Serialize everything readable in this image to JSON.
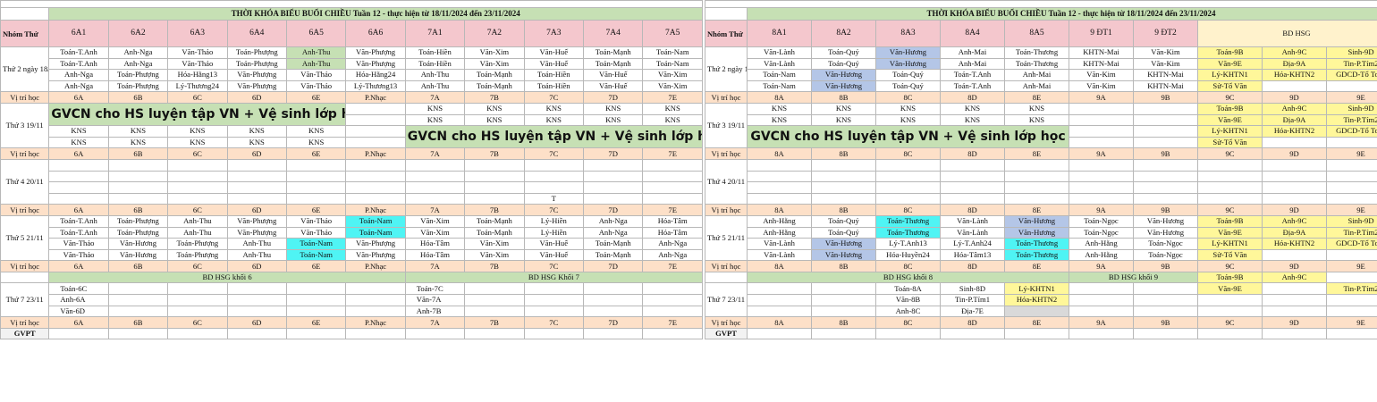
{
  "left": {
    "title": "THỜI KHÓA BIỂU BUỔI CHIỀU Tuần 12 - thực hiện từ 18/11/2024 đến 23/11/2024",
    "header_label": "Nhóm Thứ",
    "classes": [
      "6A1",
      "6A2",
      "6A3",
      "6A4",
      "6A5",
      "6A6",
      "7A1",
      "7A2",
      "7A3",
      "7A4",
      "7A5"
    ],
    "rooms": [
      "6A",
      "6B",
      "6C",
      "6D",
      "6E",
      "P.Nhạc",
      "7A",
      "7B",
      "7C",
      "7D",
      "7E"
    ],
    "room_label": "Vị trí học",
    "days": [
      {
        "label": "Thứ 2 ngày 18/11",
        "type": "grid",
        "rows": [
          [
            "Toán-T.Anh",
            "Anh-Nga",
            "Văn-Thảo",
            "Toán-Phượng",
            "Anh-Thu",
            "Văn-Phượng",
            "Toán-Hiền",
            "Văn-Xim",
            "Văn-Huế",
            "Toán-Mạnh",
            "Toán-Nam"
          ],
          [
            "Toán-T.Anh",
            "Anh-Nga",
            "Văn-Thảo",
            "Toán-Phượng",
            "Anh-Thu",
            "Văn-Phượng",
            "Toán-Hiền",
            "Văn-Xim",
            "Văn-Huế",
            "Toán-Mạnh",
            "Toán-Nam"
          ],
          [
            "Anh-Nga",
            "Toán-Phượng",
            "Hóa-Hằng13",
            "Văn-Phượng",
            "Văn-Thảo",
            "Hóa-Hằng24",
            "Anh-Thu",
            "Toán-Mạnh",
            "Toán-Hiền",
            "Văn-Huế",
            "Văn-Xim"
          ],
          [
            "Anh-Nga",
            "Toán-Phượng",
            "Lý-Thương24",
            "Văn-Phượng",
            "Văn-Thảo",
            "Lý-Thương13",
            "Anh-Thu",
            "Toán-Mạnh",
            "Toán-Hiền",
            "Văn-Huế",
            "Văn-Xim"
          ]
        ]
      },
      {
        "label": "Thứ 3 19/11",
        "type": "thu3",
        "banner": "GVCN cho HS luyện tập VN + Vệ sinh lớp học",
        "kns": "KNS"
      },
      {
        "label": "Thứ 4 20/11",
        "type": "thu4",
        "t_mark": "T"
      },
      {
        "label": "Thứ 5 21/11",
        "type": "grid",
        "rows": [
          [
            "Toán-T.Anh",
            "Toán-Phượng",
            "Anh-Thu",
            "Văn-Phượng",
            "Văn-Thảo",
            "Toán-Nam",
            "Văn-Xim",
            "Toán-Mạnh",
            "Lý-Hiền",
            "Anh-Nga",
            "Hóa-Tâm"
          ],
          [
            "Toán-T.Anh",
            "Toán-Phượng",
            "Anh-Thu",
            "Văn-Phượng",
            "Văn-Thảo",
            "Toán-Nam",
            "Văn-Xim",
            "Toán-Mạnh",
            "Lý-Hiền",
            "Anh-Nga",
            "Hóa-Tâm"
          ],
          [
            "Văn-Thảo",
            "Văn-Hương",
            "Toán-Phượng",
            "Anh-Thu",
            "Toán-Nam",
            "Văn-Phượng",
            "Hóa-Tâm",
            "Văn-Xim",
            "Văn-Huế",
            "Toán-Mạnh",
            "Anh-Nga"
          ],
          [
            "Văn-Thảo",
            "Văn-Hương",
            "Toán-Phượng",
            "Anh-Thu",
            "Toán-Nam",
            "Văn-Phượng",
            "Hóa-Tâm",
            "Văn-Xim",
            "Văn-Huế",
            "Toán-Mạnh",
            "Anh-Nga"
          ]
        ]
      },
      {
        "label": "Thứ 7 23/11",
        "type": "thu7",
        "hsg6": "BD HSG khối 6",
        "hsg7": "BD HSG  Khối 7",
        "col6": [
          "Toán-6C",
          "Anh-6A",
          "Văn-6D"
        ],
        "col7": [
          "Toán-7C",
          "Văn-7A",
          "Anh-7B"
        ]
      }
    ],
    "gvpt": "GVPT"
  },
  "right": {
    "title": "THỜI KHÓA BIỂU BUỔI CHIỀU Tuần 12 - thực hiện từ 18/11/2024 đến 23/11/2024",
    "header_label": "Nhóm Thứ",
    "classes": [
      "8A1",
      "8A2",
      "8A3",
      "8A4",
      "8A5",
      "9 ĐT1",
      "9 ĐT2"
    ],
    "bd_hsg": "BD HSG",
    "rooms": [
      "8A",
      "8B",
      "8C",
      "8D",
      "8E",
      "9A",
      "9B",
      "9C",
      "9D",
      "9E"
    ],
    "room_label": "Vị trí học",
    "days": [
      {
        "label": "Thứ 2 ngày 18/11",
        "type": "grid",
        "rows": [
          [
            "Văn-Lành",
            "Toán-Quý",
            "Văn-Hương",
            "Anh-Mai",
            "Toán-Thương",
            "KHTN-Mai",
            "Văn-Kim",
            "Toán-9B",
            "Anh-9C",
            "Sinh-9D"
          ],
          [
            "Văn-Lành",
            "Toán-Quý",
            "Văn-Hương",
            "Anh-Mai",
            "Toán-Thương",
            "KHTN-Mai",
            "Văn-Kim",
            "Văn-9E",
            "Địa-9A",
            "Tin-P.Tím2"
          ],
          [
            "Toán-Nam",
            "Văn-Hương",
            "Toán-Quý",
            "Toán-T.Anh",
            "Anh-Mai",
            "Văn-Kim",
            "KHTN-Mai",
            "Lý-KHTN1",
            "Hóa-KHTN2",
            "GDCD-Tổ Toán"
          ],
          [
            "Toán-Nam",
            "Văn-Hương",
            "Toán-Quý",
            "Toán-T.Anh",
            "Anh-Mai",
            "Văn-Kim",
            "KHTN-Mai",
            "Sử-Tổ Văn",
            "",
            ""
          ]
        ]
      },
      {
        "label": "Thứ 3 19/11",
        "type": "thu3",
        "banner": "GVCN cho HS luyện tập VN + Vệ sinh lớp học",
        "kns": "KNS",
        "hsg": [
          [
            "Toán-9B",
            "Anh-9C",
            "Sinh-9D"
          ],
          [
            "Văn-9E",
            "Địa-9A",
            "Tin-P.Tím2"
          ],
          [
            "Lý-KHTN1",
            "Hóa-KHTN2",
            "GDCD-Tổ Toán"
          ],
          [
            "Sử-Tổ Văn",
            "",
            ""
          ]
        ]
      },
      {
        "label": "Thứ 4 20/11",
        "type": "thu4"
      },
      {
        "label": "Thứ 5 21/11",
        "type": "grid",
        "rows": [
          [
            "Anh-Hằng",
            "Toán-Quý",
            "Toán-Thương",
            "Văn-Lành",
            "Văn-Hương",
            "Toán-Ngọc",
            "Văn-Hương",
            "Toán-9B",
            "Anh-9C",
            "Sinh-9D"
          ],
          [
            "Anh-Hằng",
            "Toán-Quý",
            "Toán-Thương",
            "Văn-Lành",
            "Văn-Hương",
            "Toán-Ngọc",
            "Văn-Hương",
            "Văn-9E",
            "Địa-9A",
            "Tin-P.Tím2"
          ],
          [
            "Văn-Lành",
            "Văn-Hương",
            "Lý-T.Anh13",
            "Lý-T.Anh24",
            "Toán-Thương",
            "Anh-Hằng",
            "Toán-Ngọc",
            "Lý-KHTN1",
            "Hóa-KHTN2",
            "GDCD-Tổ Toán"
          ],
          [
            "Văn-Lành",
            "Văn-Hương",
            "Hóa-Huyền24",
            "Hóa-Tâm13",
            "Toán-Thương",
            "Anh-Hằng",
            "Toán-Ngọc",
            "Sử-Tổ Văn",
            "",
            ""
          ]
        ]
      },
      {
        "label": "Thứ 7 23/11",
        "type": "thu7",
        "hsg8": "BD HSG khối 8",
        "hsg9": "BD HSG khối 9",
        "rows": [
          [
            "",
            "",
            "Toán-8A",
            "Sinh-8D",
            "Lý-KHTN1",
            "",
            "",
            "Toán-9B",
            "Anh-9C",
            ""
          ],
          [
            "",
            "",
            "Văn-8B",
            "Tin-P.Tím1",
            "Hóa-KHTN2",
            "",
            "",
            "Văn-9E",
            "",
            "Tin-P.Tím2"
          ],
          [
            "",
            "",
            "Anh-8C",
            "Địa-7E",
            "",
            "",
            "",
            "",
            "",
            ""
          ]
        ]
      }
    ],
    "gvpt": "GVPT"
  },
  "colors": {
    "header": "#f4c7cd",
    "title": "#c6e0b4",
    "room": "#fde0c8",
    "hsg": "#fff79a",
    "highlight": "#4ff4f4",
    "blue": "#b4c6e7"
  }
}
